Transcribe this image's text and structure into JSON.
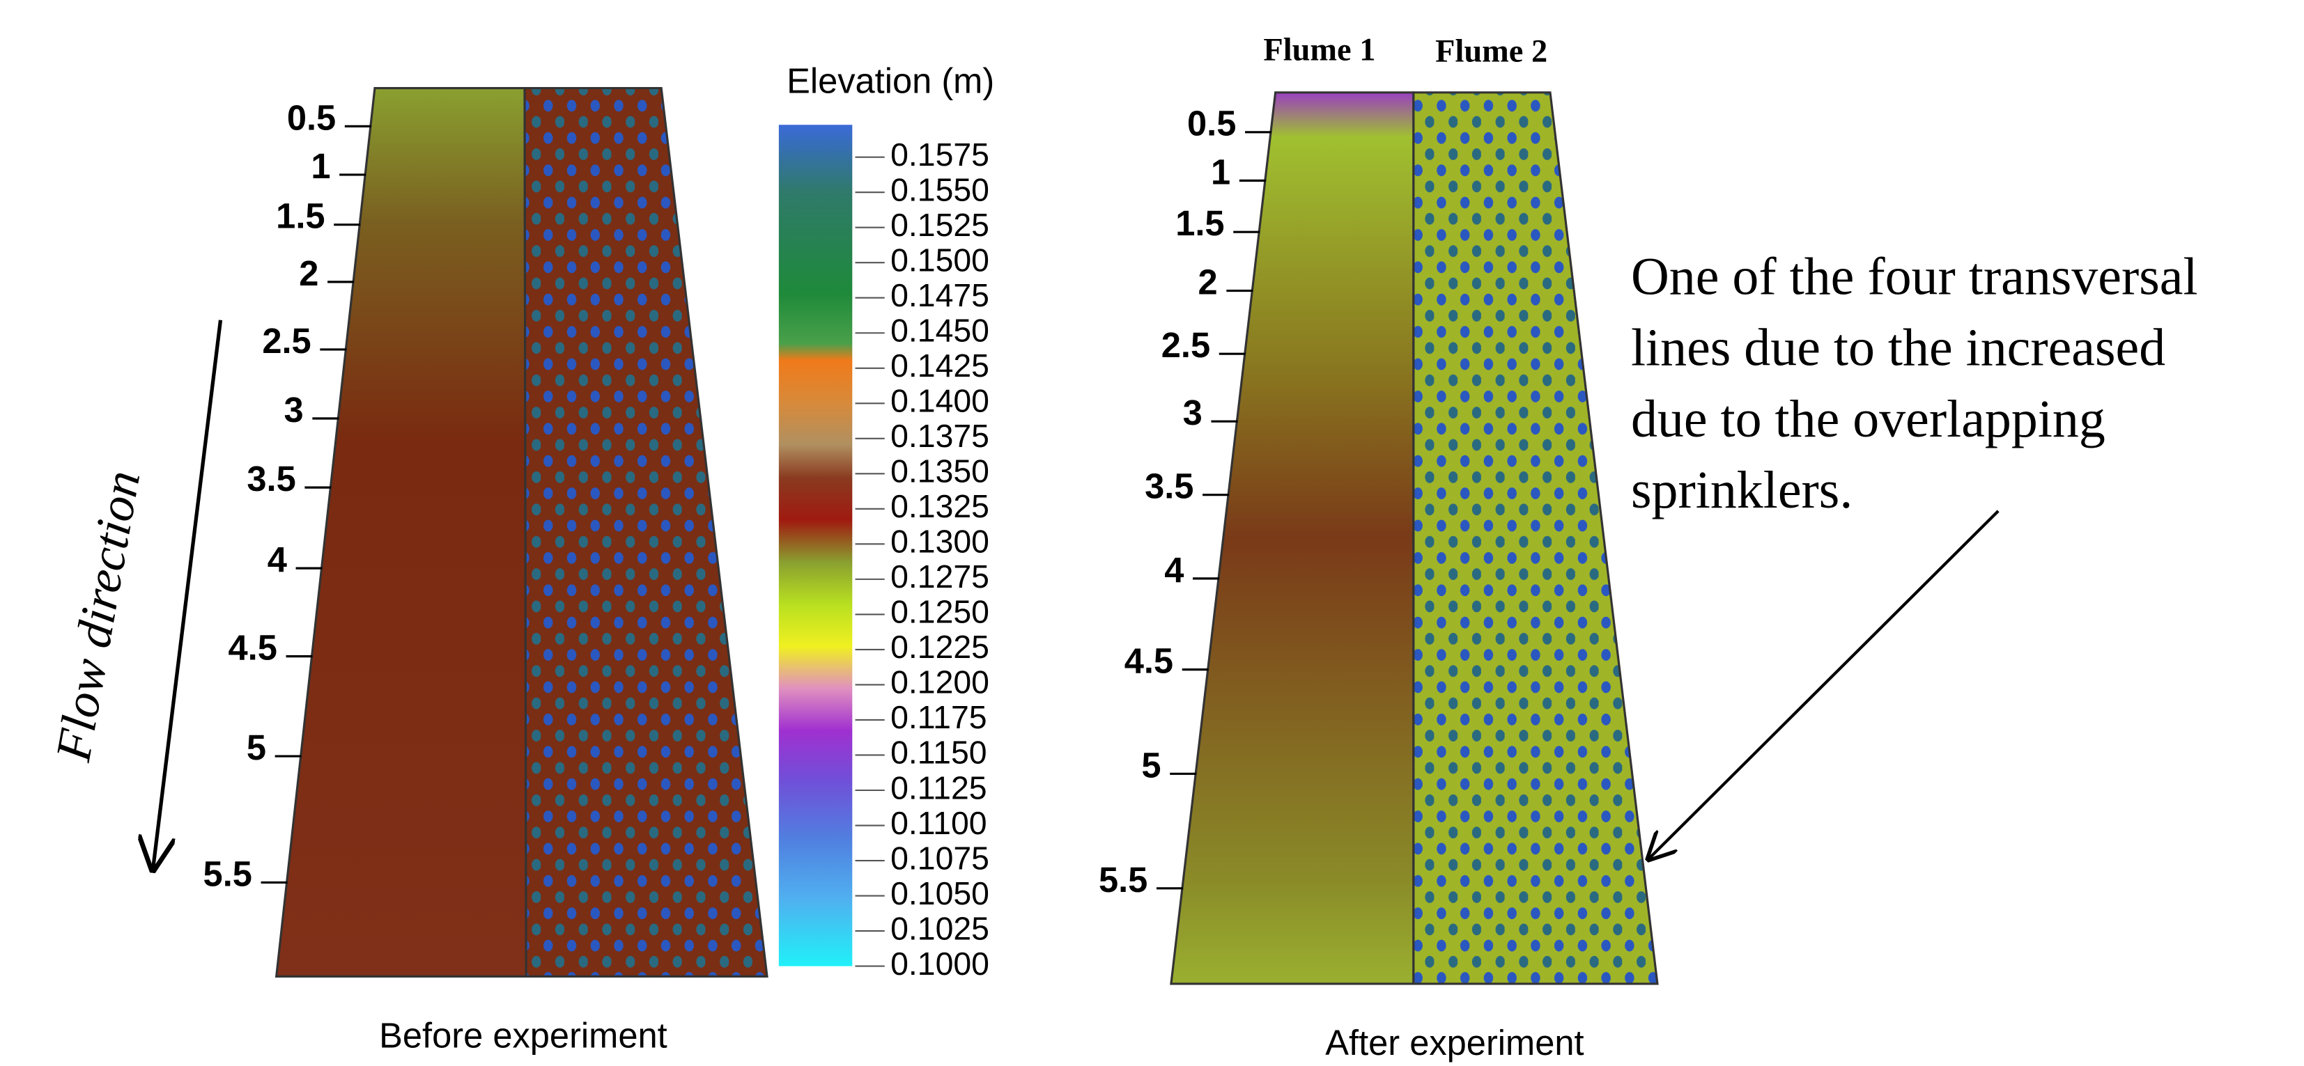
{
  "left_panel": {
    "ticks": [
      "0.5",
      "1",
      "1.5",
      "2",
      "2.5",
      "3",
      "3.5",
      "4",
      "4.5",
      "5",
      "5.5"
    ],
    "caption": "Before experiment"
  },
  "colorbar": {
    "title": "Elevation (m)",
    "labels": [
      "0.1575",
      "0.1550",
      "0.1525",
      "0.1500",
      "0.1475",
      "0.1450",
      "0.1425",
      "0.1400",
      "0.1375",
      "0.1350",
      "0.1325",
      "0.1300",
      "0.1275",
      "0.1250",
      "0.1225",
      "0.1200",
      "0.1175",
      "0.1150",
      "0.1125",
      "0.1100",
      "0.1075",
      "0.1050",
      "0.1025",
      "0.1000"
    ]
  },
  "right_panel": {
    "flumes": [
      "Flume 1",
      "Flume 2"
    ],
    "ticks": [
      "0.5",
      "1",
      "1.5",
      "2",
      "2.5",
      "3",
      "3.5",
      "4",
      "4.5",
      "5",
      "5.5"
    ],
    "caption": "After experiment"
  },
  "flow_label": "Flow direction",
  "annotation": [
    "One of the four transversal",
    "lines due to the increased",
    "due to the overlapping",
    "sprinklers."
  ]
}
